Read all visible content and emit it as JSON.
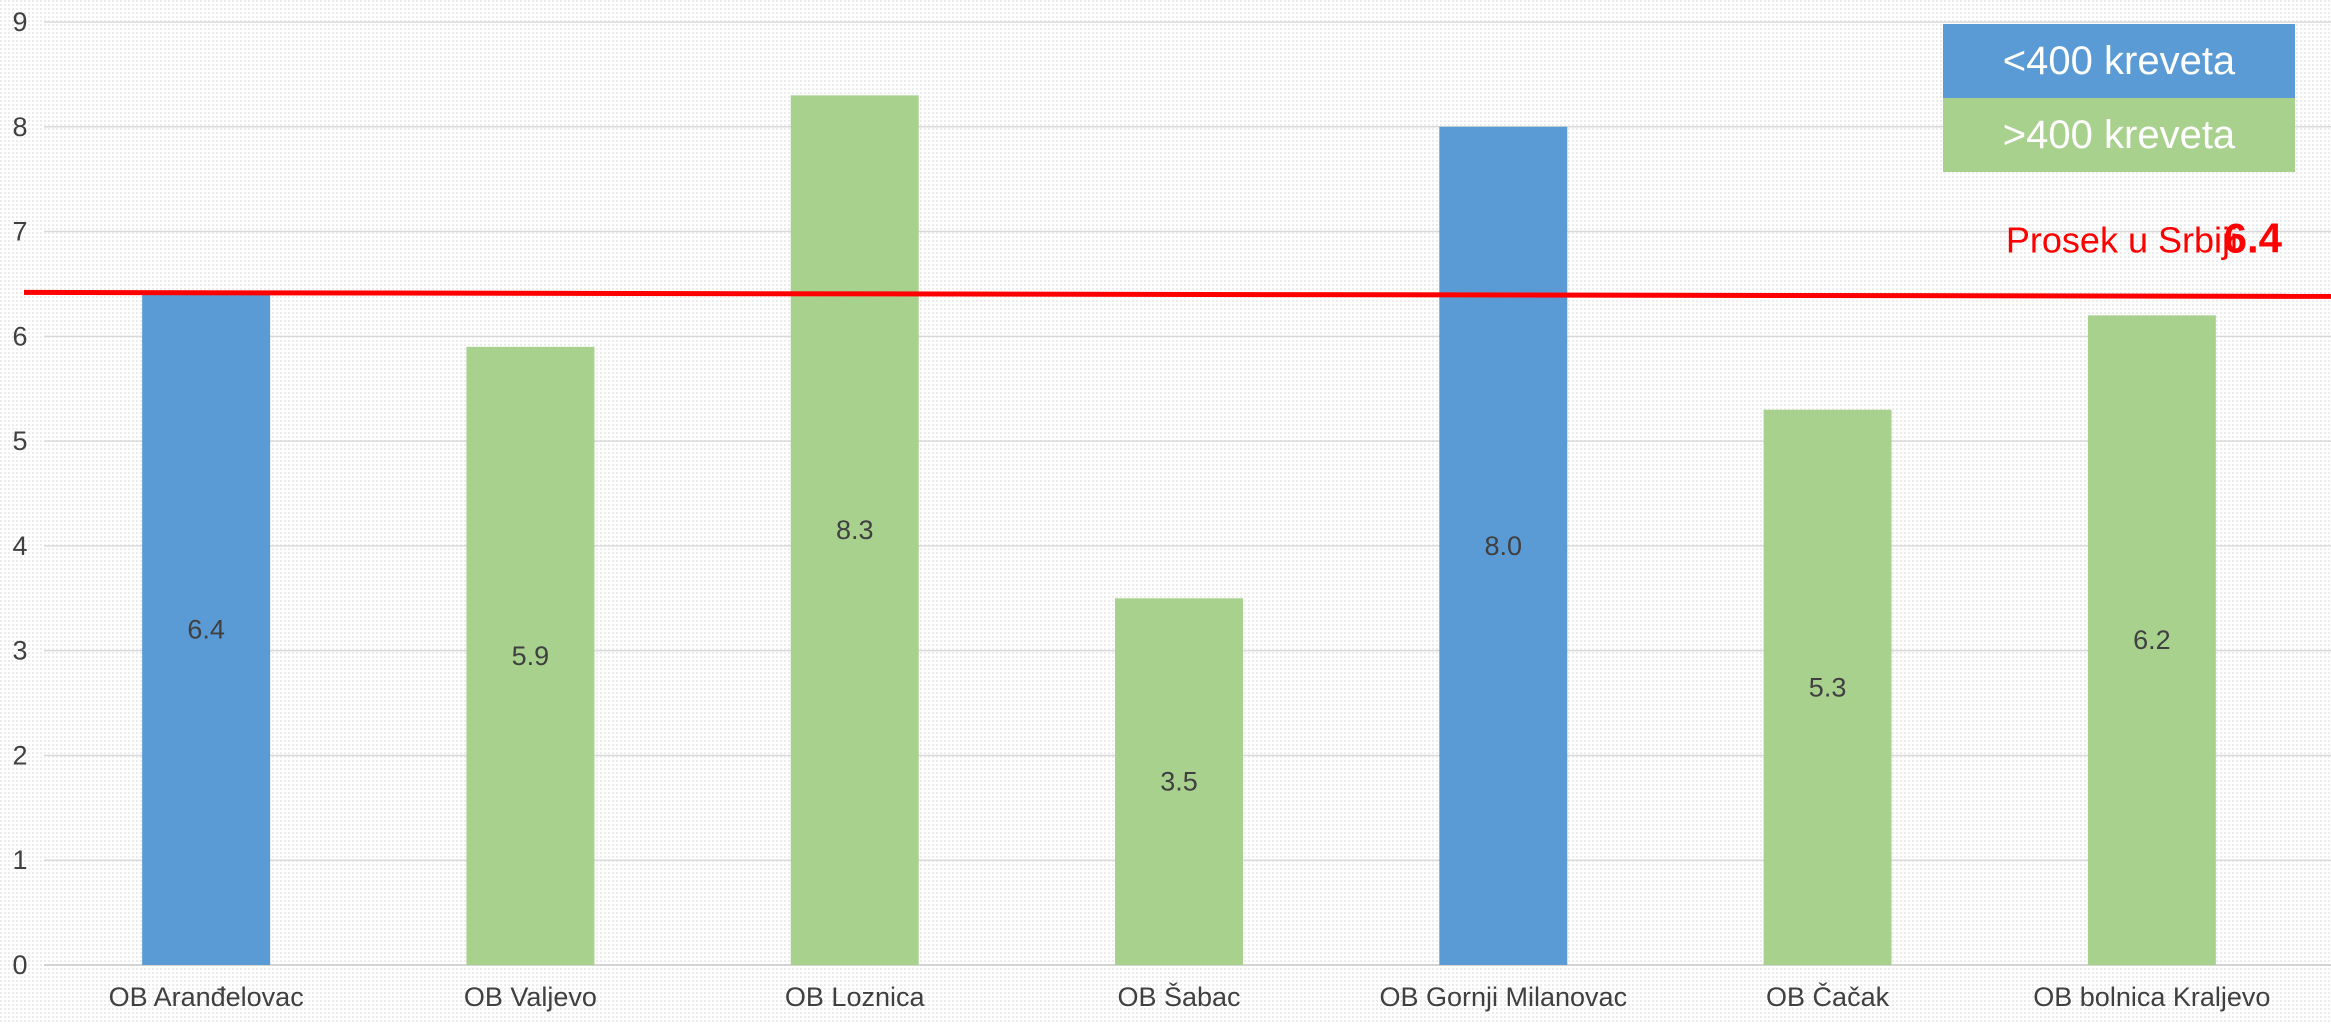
{
  "chart_data": {
    "type": "bar",
    "categories": [
      "OB Aranđelovac",
      "OB Valjevo",
      "OB Loznica",
      "OB Šabac",
      "OB Gornji Milanovac",
      "OB Čačak",
      "OB bolnica Kraljevo"
    ],
    "values": [
      6.4,
      5.9,
      8.3,
      3.5,
      8.0,
      5.3,
      6.2
    ],
    "data_labels": [
      "6.4",
      "5.9",
      "8.3",
      "3.5",
      "8.0",
      "5.3",
      "6.2"
    ],
    "groups": [
      "<400 kreveta",
      ">400 kreveta",
      ">400 kreveta",
      ">400 kreveta",
      "<400 kreveta",
      ">400 kreveta",
      ">400 kreveta"
    ],
    "ylim": [
      0,
      9
    ],
    "yticks": [
      0,
      1,
      2,
      3,
      4,
      5,
      6,
      7,
      8,
      9
    ],
    "grid": true,
    "legend": {
      "placement": "top-right",
      "entries": [
        {
          "label": "<400 kreveta",
          "color": "#5b9bd5"
        },
        {
          "label": ">400 kreveta",
          "color": "#a9d18e"
        }
      ]
    },
    "reference_line": {
      "value": 6.4,
      "label": "Prosek u Srbiji",
      "value_label": "6.4",
      "color": "#ff0000"
    },
    "title": "",
    "xlabel": "",
    "ylabel": ""
  }
}
